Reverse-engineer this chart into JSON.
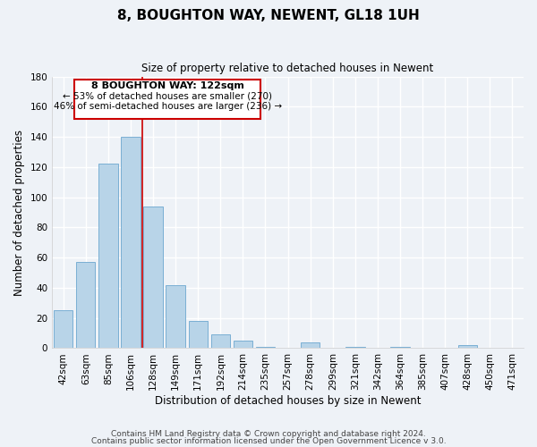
{
  "title": "8, BOUGHTON WAY, NEWENT, GL18 1UH",
  "subtitle": "Size of property relative to detached houses in Newent",
  "xlabel": "Distribution of detached houses by size in Newent",
  "ylabel": "Number of detached properties",
  "bar_labels": [
    "42sqm",
    "63sqm",
    "85sqm",
    "106sqm",
    "128sqm",
    "149sqm",
    "171sqm",
    "192sqm",
    "214sqm",
    "235sqm",
    "257sqm",
    "278sqm",
    "299sqm",
    "321sqm",
    "342sqm",
    "364sqm",
    "385sqm",
    "407sqm",
    "428sqm",
    "450sqm",
    "471sqm"
  ],
  "bar_values": [
    25,
    57,
    122,
    140,
    94,
    42,
    18,
    9,
    5,
    1,
    0,
    4,
    0,
    1,
    0,
    1,
    0,
    0,
    2,
    0,
    0
  ],
  "bar_color": "#b8d4e8",
  "bar_edge_color": "#7aafd4",
  "ylim": [
    0,
    180
  ],
  "yticks": [
    0,
    20,
    40,
    60,
    80,
    100,
    120,
    140,
    160,
    180
  ],
  "vline_color": "#cc0000",
  "annotation_title": "8 BOUGHTON WAY: 122sqm",
  "annotation_line1": "← 53% of detached houses are smaller (270)",
  "annotation_line2": "46% of semi-detached houses are larger (236) →",
  "footer1": "Contains HM Land Registry data © Crown copyright and database right 2024.",
  "footer2": "Contains public sector information licensed under the Open Government Licence v 3.0.",
  "background_color": "#eef2f7",
  "grid_color": "#ffffff"
}
